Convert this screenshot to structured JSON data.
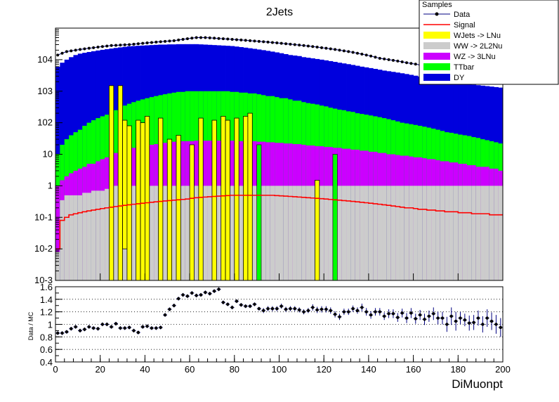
{
  "chart_data": {
    "type": "bar",
    "title": "2Jets",
    "xlabel": "DiMuonpt",
    "ylabel_ratio": "Data / MC",
    "upper_yscale": "log",
    "upper_ylim": [
      0.001,
      100000
    ],
    "upper_ytick_labels": [
      "10^-3",
      "10^-2",
      "10^-1",
      "1",
      "10",
      "10^2",
      "10^3",
      "10^4"
    ],
    "xlim": [
      0,
      200
    ],
    "xtick_labels": [
      "0",
      "20",
      "40",
      "60",
      "80",
      "100",
      "120",
      "140",
      "160",
      "180",
      "200"
    ],
    "ratio_ylim": [
      0.4,
      1.6
    ],
    "ratio_ytick_labels": [
      "0.4",
      "0.6",
      "0.8",
      "1",
      "1.2",
      "1.4",
      "1.6"
    ],
    "bin_width": 2,
    "legend": {
      "title": "Samples",
      "position": "top-right",
      "entries": [
        {
          "label": "Data",
          "color": "#000080",
          "style": "marker"
        },
        {
          "label": "Signal",
          "color": "#ff0000",
          "style": "line"
        },
        {
          "label": "WJets -> LNu",
          "color": "#ffff00",
          "style": "fill"
        },
        {
          "label": "WW -> 2L2Nu",
          "color": "#cccccc",
          "style": "fill"
        },
        {
          "label": "WZ -> 3LNu",
          "color": "#cc00ff",
          "style": "fill"
        },
        {
          "label": "TTbar",
          "color": "#00ff00",
          "style": "fill"
        },
        {
          "label": "DY",
          "color": "#0000dd",
          "style": "fill"
        }
      ]
    },
    "series_description": "Stacked histogram (bottom to top): WW -> 2L2Nu, WJets -> LNu spikes, WZ -> 3LNu, TTbar, DY; data points with error bars; signal line. Values are cumulative stack tops per 2-unit bin.",
    "ww_top": [
      0.008,
      0.35,
      0.5,
      0.5,
      0.5,
      0.5,
      0.6,
      0.6,
      0.7,
      0.7,
      0.7,
      0.8,
      0.8,
      1,
      1,
      1,
      1,
      1,
      1,
      1,
      1,
      1,
      1,
      1,
      1,
      1,
      1,
      1,
      1,
      1,
      1,
      1,
      1,
      1,
      1,
      1,
      1,
      1,
      1,
      1,
      1,
      1,
      1,
      1,
      1,
      1,
      1,
      1,
      1,
      1,
      1,
      1,
      1,
      1,
      1,
      1,
      1,
      1,
      1,
      1,
      1,
      1,
      1,
      1,
      1,
      1,
      1,
      1,
      1,
      1,
      1,
      1,
      1,
      1,
      1,
      1,
      1,
      1,
      1,
      1,
      1,
      1,
      1,
      1,
      1,
      1,
      1,
      1,
      1,
      1,
      1,
      1,
      1,
      1,
      1,
      1,
      1,
      1,
      1,
      1
    ],
    "wz_top": [
      1,
      1.5,
      2,
      2.5,
      3,
      3.5,
      4,
      5,
      5,
      6,
      7,
      8,
      9,
      11,
      12,
      13,
      15,
      16,
      17,
      18,
      19,
      20,
      21,
      22,
      23,
      24,
      25,
      25,
      26,
      26,
      26,
      27,
      27,
      27,
      27,
      27,
      27,
      27,
      27,
      27,
      27,
      26,
      26,
      26,
      26,
      25,
      25,
      24,
      24,
      23,
      23,
      22,
      22,
      21,
      21,
      20,
      19,
      19,
      18,
      18,
      17,
      17,
      16,
      16,
      15,
      15,
      14,
      14,
      13,
      13,
      12,
      12,
      11,
      11,
      10,
      10,
      9.5,
      9,
      9,
      8.5,
      8,
      8,
      7.5,
      7,
      7,
      6.5,
      6,
      6,
      5.5,
      5.5,
      5,
      5,
      4.5,
      4.5,
      4,
      4,
      4,
      3.5,
      3.5,
      3
    ],
    "ttbar_top": [
      10,
      20,
      30,
      40,
      50,
      60,
      80,
      100,
      120,
      140,
      160,
      180,
      200,
      250,
      300,
      350,
      400,
      450,
      500,
      550,
      600,
      650,
      700,
      750,
      800,
      850,
      900,
      950,
      950,
      1000,
      1000,
      1000,
      1000,
      1000,
      1000,
      1000,
      1000,
      1000,
      1000,
      950,
      950,
      900,
      900,
      850,
      850,
      800,
      750,
      700,
      700,
      650,
      600,
      600,
      550,
      500,
      500,
      450,
      420,
      400,
      380,
      350,
      330,
      300,
      280,
      260,
      250,
      230,
      220,
      200,
      190,
      180,
      170,
      160,
      150,
      140,
      130,
      120,
      110,
      100,
      95,
      90,
      85,
      80,
      75,
      70,
      65,
      60,
      55,
      50,
      48,
      45,
      42,
      40,
      38,
      35,
      33,
      30,
      28,
      26,
      24,
      22
    ],
    "dy_top": [
      6000,
      8000,
      10000,
      12000,
      14000,
      15500,
      16500,
      17500,
      18500,
      19500,
      20500,
      21500,
      22500,
      23500,
      24500,
      25500,
      26500,
      27000,
      27500,
      28000,
      28500,
      29000,
      29500,
      30000,
      30000,
      30500,
      30500,
      31000,
      31000,
      31000,
      31000,
      31000,
      30500,
      30000,
      29500,
      29000,
      28500,
      28000,
      27500,
      27000,
      26000,
      25000,
      24000,
      23000,
      22000,
      21000,
      20000,
      19000,
      18000,
      17000,
      16000,
      15000,
      14000,
      13500,
      13000,
      12000,
      11500,
      11000,
      10500,
      10000,
      9500,
      9000,
      8500,
      8000,
      7600,
      7200,
      6800,
      6400,
      6000,
      5700,
      5400,
      5100,
      4800,
      4500,
      4300,
      4100,
      3900,
      3700,
      3500,
      3300,
      3100,
      2900,
      2800,
      2600,
      2500,
      2400,
      2300,
      2200,
      2100,
      2000,
      1900,
      1800,
      1700,
      1600,
      1550,
      1500,
      1450,
      1400,
      1350,
      1300
    ],
    "wjets_spikes": [
      {
        "x": 24,
        "top": 1500
      },
      {
        "x": 28,
        "top": 1500
      },
      {
        "x": 30,
        "top": 120
      },
      {
        "x": 32,
        "top": 80
      },
      {
        "x": 36,
        "top": 120
      },
      {
        "x": 38,
        "top": 100
      },
      {
        "x": 40,
        "top": 160
      },
      {
        "x": 46,
        "top": 140
      },
      {
        "x": 50,
        "top": 30
      },
      {
        "x": 54,
        "top": 40
      },
      {
        "x": 60,
        "top": 20
      },
      {
        "x": 64,
        "top": 140
      },
      {
        "x": 70,
        "top": 120
      },
      {
        "x": 74,
        "top": 160
      },
      {
        "x": 76,
        "top": 120
      },
      {
        "x": 80,
        "top": 140
      },
      {
        "x": 84,
        "top": 160
      },
      {
        "x": 86,
        "top": 200
      },
      {
        "x": 116,
        "top": 1.5
      }
    ],
    "wjets_bottoms": {
      "24": 0.001,
      "28": 0.001,
      "30": 0.01,
      "32": 0.001,
      "36": 0.001,
      "38": 0.001,
      "40": 0.001,
      "46": 0.001,
      "50": 0.001,
      "54": 0.001,
      "60": 0.001,
      "64": 0.001,
      "70": 0.001,
      "74": 0.001,
      "76": 0.001,
      "80": 0.001,
      "84": 0.001,
      "86": 0.001,
      "116": 0.001
    },
    "ttbar_spikes": [
      {
        "x": 40,
        "bottom": 0.001,
        "top": 30
      },
      {
        "x": 90,
        "bottom": 0.001,
        "top": 20
      },
      {
        "x": 124,
        "bottom": 0.001,
        "top": 10
      }
    ],
    "data_values": [
      14000,
      16000,
      18000,
      19000,
      20000,
      21000,
      22000,
      23000,
      24000,
      25000,
      26000,
      27000,
      28000,
      28500,
      29000,
      29500,
      30000,
      31000,
      32000,
      33000,
      34000,
      35000,
      36000,
      37000,
      38000,
      39000,
      40000,
      42000,
      44000,
      46000,
      48000,
      50000,
      50000,
      50000,
      49000,
      48000,
      47000,
      46000,
      45000,
      44000,
      43000,
      42000,
      41000,
      40000,
      39000,
      38000,
      37000,
      36000,
      35000,
      34000,
      33000,
      32000,
      31000,
      30000,
      29000,
      28000,
      27000,
      26000,
      25000,
      24000,
      23000,
      22000,
      21000,
      20000,
      19000,
      18000,
      17000,
      16000,
      15000,
      14000,
      13000,
      12000,
      11000,
      10500,
      10000,
      9500,
      9000,
      8500,
      8000,
      7600,
      7200,
      6800,
      6400,
      6000,
      5700,
      5400,
      5100,
      4800,
      4500,
      4300,
      4100,
      3900,
      3700,
      3500,
      3300,
      3100,
      2900,
      2800,
      2600,
      2500
    ],
    "signal_values": [
      0.01,
      0.08,
      0.1,
      0.12,
      0.13,
      0.14,
      0.15,
      0.16,
      0.17,
      0.18,
      0.19,
      0.2,
      0.21,
      0.22,
      0.23,
      0.24,
      0.25,
      0.26,
      0.27,
      0.28,
      0.29,
      0.3,
      0.31,
      0.32,
      0.33,
      0.34,
      0.35,
      0.36,
      0.37,
      0.38,
      0.4,
      0.42,
      0.43,
      0.44,
      0.45,
      0.46,
      0.47,
      0.48,
      0.49,
      0.5,
      0.5,
      0.5,
      0.5,
      0.5,
      0.5,
      0.5,
      0.5,
      0.5,
      0.5,
      0.49,
      0.48,
      0.47,
      0.46,
      0.45,
      0.44,
      0.43,
      0.42,
      0.41,
      0.4,
      0.39,
      0.38,
      0.37,
      0.36,
      0.35,
      0.34,
      0.33,
      0.32,
      0.31,
      0.3,
      0.29,
      0.28,
      0.27,
      0.26,
      0.25,
      0.24,
      0.23,
      0.22,
      0.21,
      0.2,
      0.2,
      0.19,
      0.18,
      0.18,
      0.17,
      0.17,
      0.16,
      0.16,
      0.15,
      0.15,
      0.15,
      0.14,
      0.14,
      0.14,
      0.13,
      0.13,
      0.13,
      0.13,
      0.12,
      0.12,
      0.12
    ],
    "ratio_values": [
      0.86,
      0.86,
      0.88,
      0.93,
      0.96,
      0.9,
      0.92,
      0.96,
      0.94,
      0.93,
      1.0,
      1.0,
      0.96,
      1.01,
      0.94,
      0.94,
      0.95,
      0.9,
      0.87,
      0.96,
      0.97,
      0.94,
      0.94,
      0.95,
      1.15,
      1.24,
      1.3,
      1.41,
      1.47,
      1.45,
      1.5,
      1.46,
      1.47,
      1.51,
      1.49,
      1.53,
      1.56,
      1.35,
      1.32,
      1.27,
      1.37,
      1.31,
      1.29,
      1.29,
      1.32,
      1.25,
      1.22,
      1.25,
      1.25,
      1.25,
      1.29,
      1.24,
      1.25,
      1.25,
      1.23,
      1.2,
      1.22,
      1.27,
      1.23,
      1.24,
      1.24,
      1.22,
      1.16,
      1.12,
      1.2,
      1.2,
      1.25,
      1.22,
      1.27,
      1.2,
      1.15,
      1.2,
      1.2,
      1.13,
      1.17,
      1.17,
      1.11,
      1.18,
      1.1,
      1.18,
      1.09,
      1.15,
      1.08,
      1.13,
      1.17,
      1.1,
      1.1,
      1.0,
      1.13,
      1.05,
      1.1,
      1.07,
      1.02,
      1.03,
      1.1,
      1.0,
      1.1,
      1.05,
      1.0,
      0.95
    ],
    "ratio_errors": [
      0.03,
      0.03,
      0.03,
      0.03,
      0.03,
      0.03,
      0.03,
      0.03,
      0.03,
      0.03,
      0.03,
      0.03,
      0.03,
      0.03,
      0.03,
      0.03,
      0.03,
      0.03,
      0.03,
      0.03,
      0.03,
      0.03,
      0.03,
      0.03,
      0.03,
      0.03,
      0.03,
      0.03,
      0.03,
      0.03,
      0.03,
      0.03,
      0.03,
      0.03,
      0.03,
      0.03,
      0.03,
      0.03,
      0.03,
      0.03,
      0.03,
      0.03,
      0.03,
      0.03,
      0.03,
      0.03,
      0.04,
      0.04,
      0.04,
      0.04,
      0.04,
      0.04,
      0.04,
      0.04,
      0.04,
      0.04,
      0.04,
      0.05,
      0.05,
      0.05,
      0.05,
      0.05,
      0.05,
      0.05,
      0.05,
      0.05,
      0.05,
      0.05,
      0.06,
      0.06,
      0.06,
      0.06,
      0.06,
      0.06,
      0.07,
      0.07,
      0.07,
      0.07,
      0.08,
      0.08,
      0.08,
      0.08,
      0.09,
      0.09,
      0.1,
      0.1,
      0.1,
      0.12,
      0.14,
      0.15,
      0.1,
      0.1,
      0.12,
      0.12,
      0.12,
      0.13,
      0.14,
      0.14,
      0.15,
      0.15
    ]
  }
}
